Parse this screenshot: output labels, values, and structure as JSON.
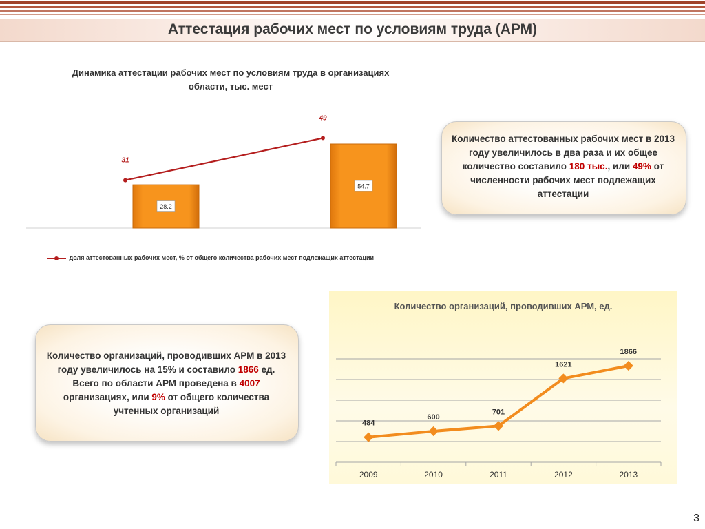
{
  "page": {
    "title": "Аттестация рабочих мест по условиям труда (АРМ)",
    "number": "3"
  },
  "colors": {
    "header_stripe": "#a0432a",
    "bar": "#f7941d",
    "line1": "#b41e1e",
    "line2": "#f28c1e"
  },
  "info_box_top": {
    "parts": [
      {
        "text": "Количество  аттестованных  рабочих мест в 2013 году  увеличилось в два раза  и  их общее количество составило ",
        "hl": false
      },
      {
        "text": "180 тыс.",
        "hl": true
      },
      {
        "text": ", или ",
        "hl": false
      },
      {
        "text": "49%",
        "hl": true
      },
      {
        "text": " от численности рабочих мест подлежащих аттестации",
        "hl": false
      }
    ]
  },
  "info_box_bottom": {
    "parts": [
      {
        "text": "Количество  организаций, проводивших АРМ в 2013 году  увеличилось на 15% и составило ",
        "hl": false
      },
      {
        "text": "1866",
        "hl": true
      },
      {
        "text": " ед. Всего по области АРМ проведена в ",
        "hl": false
      },
      {
        "text": "4007",
        "hl": true
      },
      {
        "text": " организациях,  или  ",
        "hl": false
      },
      {
        "text": "9%",
        "hl": true
      },
      {
        "text": " от общего количества учтенных организаций",
        "hl": false
      }
    ]
  },
  "chart_data": [
    {
      "type": "bar",
      "title": "Динамика аттестации  рабочих мест по условиям труда в организациях области, тыс. мест",
      "categories": [
        "",
        ""
      ],
      "series": [
        {
          "values": [
            28.2,
            54.7
          ]
        },
        {
          "name": "доля аттестованных рабочих мест, % от общего количества рабочих мест подлежащих аттестации",
          "type": "line",
          "values": [
            31,
            49
          ]
        }
      ],
      "legend": "bottom"
    },
    {
      "type": "line",
      "title": "Количество организаций, проводивших АРМ, ед.",
      "categories": [
        "2009",
        "2010",
        "2011",
        "2012",
        "2013"
      ],
      "series": [
        {
          "values": [
            484,
            600,
            701,
            1621,
            1866
          ]
        }
      ],
      "ylim": [
        0,
        2000
      ],
      "grid": true
    }
  ]
}
